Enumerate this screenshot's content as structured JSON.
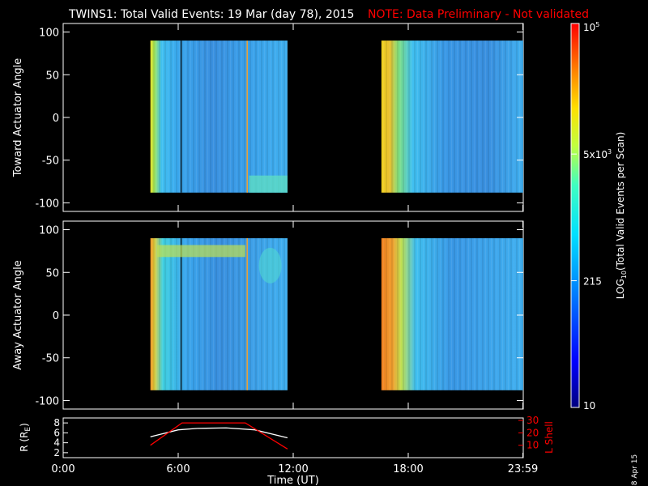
{
  "header": {
    "title": "TWINS1: Total Valid Events: 19 Mar (day  78), 2015",
    "note": "NOTE: Data Preliminary - Not validated"
  },
  "colors": {
    "background": "#000000",
    "axis": "#ffffff",
    "note": "#ff0000",
    "orbit_line": "#ffffff",
    "lshell_line": "#ff0000"
  },
  "chart_data": [
    {
      "type": "heatmap",
      "panel": "toward",
      "ylabel": "Toward Actuator Angle",
      "ylim": [
        -110,
        110
      ],
      "yticks": [
        "100",
        "50",
        "0",
        "-50",
        "-100"
      ],
      "xlim": [
        0,
        24
      ],
      "data_blocks": [
        {
          "x": [
            4.55,
            11.7
          ],
          "y": [
            -88,
            90
          ]
        },
        {
          "x": [
            16.6,
            24.0
          ],
          "y": [
            -88,
            90
          ]
        }
      ]
    },
    {
      "type": "heatmap",
      "panel": "away",
      "ylabel": "Away Actuator Angle",
      "ylim": [
        -110,
        110
      ],
      "yticks": [
        "100",
        "50",
        "0",
        "-50",
        "-100"
      ],
      "xlim": [
        0,
        24
      ],
      "data_blocks": [
        {
          "x": [
            4.55,
            11.7
          ],
          "y": [
            -88,
            90
          ]
        },
        {
          "x": [
            16.6,
            24.0
          ],
          "y": [
            -88,
            90
          ]
        }
      ]
    },
    {
      "type": "line",
      "panel": "orbit",
      "ylabel_left": "R (R",
      "ylabel_left_sub": "E",
      "ylabel_left_close": ")",
      "ylabel_right": "L Shell",
      "yticks_left": [
        "8",
        "6",
        "4",
        "2"
      ],
      "yticks_right": [
        "30",
        "20",
        "10"
      ],
      "ylim_left": [
        1,
        9
      ],
      "ylim_right": [
        0,
        32
      ],
      "series": [
        {
          "x": [
            4.55,
            6.0,
            7.0,
            8.5,
            10.0,
            11.7
          ],
          "y": [
            5.2,
            6.6,
            6.9,
            7.0,
            6.6,
            5.0
          ],
          "axis": "left"
        },
        {
          "x": [
            4.55,
            6.2,
            9.5,
            11.7
          ],
          "y": [
            10,
            28,
            28,
            7
          ],
          "axis": "right"
        }
      ]
    }
  ],
  "xaxis": {
    "ticks": [
      "0:00",
      "6:00",
      "12:00",
      "18:00",
      "23:59"
    ],
    "tick_hours": [
      0,
      6,
      12,
      18,
      23.98
    ],
    "label": "Time (UT)"
  },
  "colorbar": {
    "label": "LOG",
    "label_sub": "10",
    "label_rest": "(Total Valid Events per Scan)",
    "ticks": [
      {
        "base": "10",
        "exp": "5",
        "frac": 1.0
      },
      {
        "base": "5x10",
        "exp": "3",
        "frac": 0.66
      },
      {
        "base": "215",
        "exp": "",
        "frac": 0.33
      },
      {
        "base": "10",
        "exp": "",
        "frac": 0.0
      }
    ]
  },
  "footer": {
    "date": "8 Apr 15"
  }
}
